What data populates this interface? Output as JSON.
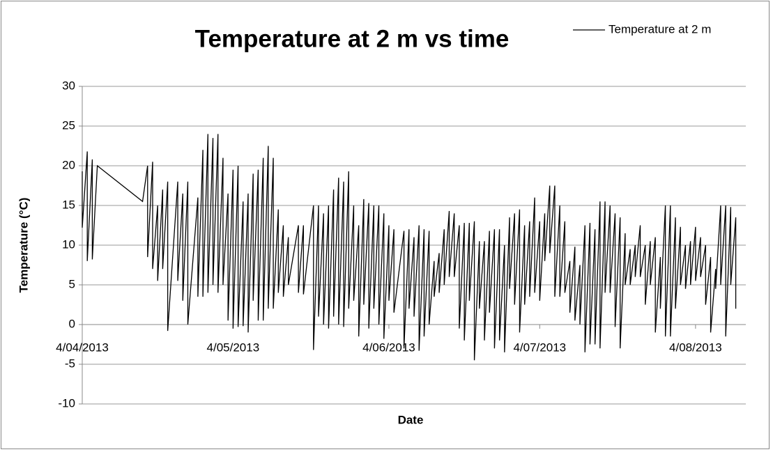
{
  "chart_data": {
    "type": "line",
    "title": "Temperature at 2 m vs time",
    "x_label": "Date",
    "y_label": "Temperature (°C)",
    "legend": "top-right",
    "grid": true,
    "xlim": [
      "2013-04-04",
      "2013-08-14"
    ],
    "xticks": [
      {
        "value": "2013-04-04",
        "label": "4/04/2013"
      },
      {
        "value": "2013-05-04",
        "label": "4/05/2013"
      },
      {
        "value": "2013-06-04",
        "label": "4/06/2013"
      },
      {
        "value": "2013-07-04",
        "label": "4/07/2013"
      },
      {
        "value": "2013-08-04",
        "label": "4/08/2013"
      }
    ],
    "ylim": [
      -10,
      30
    ],
    "yticks": [
      -10,
      -5,
      0,
      5,
      10,
      15,
      20,
      25,
      30
    ],
    "x": [
      "2013-04-04",
      "2013-04-04",
      "2013-04-05",
      "2013-04-05",
      "2013-04-06",
      "2013-04-06",
      "2013-04-07",
      "2013-04-16",
      "2013-04-17",
      "2013-04-17",
      "2013-04-18",
      "2013-04-18",
      "2013-04-19",
      "2013-04-19",
      "2013-04-20",
      "2013-04-20",
      "2013-04-21",
      "2013-04-21",
      "2013-04-23",
      "2013-04-23",
      "2013-04-24",
      "2013-04-24",
      "2013-04-25",
      "2013-04-25",
      "2013-04-27",
      "2013-04-27",
      "2013-04-28",
      "2013-04-28",
      "2013-04-29",
      "2013-04-29",
      "2013-04-30",
      "2013-04-30",
      "2013-05-01",
      "2013-05-01",
      "2013-05-02",
      "2013-05-02",
      "2013-05-03",
      "2013-05-03",
      "2013-05-04",
      "2013-05-04",
      "2013-05-05",
      "2013-05-05",
      "2013-05-06",
      "2013-05-06",
      "2013-05-07",
      "2013-05-07",
      "2013-05-08",
      "2013-05-08",
      "2013-05-09",
      "2013-05-09",
      "2013-05-10",
      "2013-05-10",
      "2013-05-11",
      "2013-05-11",
      "2013-05-12",
      "2013-05-12",
      "2013-05-13",
      "2013-05-13",
      "2013-05-14",
      "2013-05-14",
      "2013-05-15",
      "2013-05-15",
      "2013-05-17",
      "2013-05-17",
      "2013-05-18",
      "2013-05-18",
      "2013-05-20",
      "2013-05-20",
      "2013-05-21",
      "2013-05-21",
      "2013-05-22",
      "2013-05-22",
      "2013-05-23",
      "2013-05-23",
      "2013-05-24",
      "2013-05-24",
      "2013-05-25",
      "2013-05-25",
      "2013-05-26",
      "2013-05-26",
      "2013-05-27",
      "2013-05-27",
      "2013-05-28",
      "2013-05-28",
      "2013-05-29",
      "2013-05-29",
      "2013-05-30",
      "2013-05-30",
      "2013-05-31",
      "2013-05-31",
      "2013-06-01",
      "2013-06-01",
      "2013-06-02",
      "2013-06-02",
      "2013-06-03",
      "2013-06-03",
      "2013-06-04",
      "2013-06-04",
      "2013-06-05",
      "2013-06-05",
      "2013-06-07",
      "2013-06-07",
      "2013-06-08",
      "2013-06-08",
      "2013-06-09",
      "2013-06-09",
      "2013-06-10",
      "2013-06-10",
      "2013-06-11",
      "2013-06-11",
      "2013-06-12",
      "2013-06-12",
      "2013-06-13",
      "2013-06-13",
      "2013-06-14",
      "2013-06-14",
      "2013-06-15",
      "2013-06-15",
      "2013-06-16",
      "2013-06-16",
      "2013-06-17",
      "2013-06-17",
      "2013-06-18",
      "2013-06-18",
      "2013-06-19",
      "2013-06-19",
      "2013-06-20",
      "2013-06-20",
      "2013-06-21",
      "2013-06-21",
      "2013-06-22",
      "2013-06-22",
      "2013-06-23",
      "2013-06-23",
      "2013-06-24",
      "2013-06-24",
      "2013-06-25",
      "2013-06-25",
      "2013-06-26",
      "2013-06-26",
      "2013-06-27",
      "2013-06-27",
      "2013-06-28",
      "2013-06-28",
      "2013-06-29",
      "2013-06-29",
      "2013-06-30",
      "2013-06-30",
      "2013-07-01",
      "2013-07-01",
      "2013-07-02",
      "2013-07-02",
      "2013-07-03",
      "2013-07-03",
      "2013-07-04",
      "2013-07-04",
      "2013-07-05",
      "2013-07-05",
      "2013-07-06",
      "2013-07-06",
      "2013-07-07",
      "2013-07-07",
      "2013-07-08",
      "2013-07-08",
      "2013-07-09",
      "2013-07-09",
      "2013-07-10",
      "2013-07-10",
      "2013-07-11",
      "2013-07-11",
      "2013-07-12",
      "2013-07-12",
      "2013-07-13",
      "2013-07-13",
      "2013-07-14",
      "2013-07-14",
      "2013-07-15",
      "2013-07-15",
      "2013-07-16",
      "2013-07-16",
      "2013-07-17",
      "2013-07-17",
      "2013-07-18",
      "2013-07-18",
      "2013-07-19",
      "2013-07-19",
      "2013-07-20",
      "2013-07-20",
      "2013-07-21",
      "2013-07-21",
      "2013-07-22",
      "2013-07-22",
      "2013-07-23",
      "2013-07-23",
      "2013-07-24",
      "2013-07-24",
      "2013-07-25",
      "2013-07-25",
      "2013-07-26",
      "2013-07-26",
      "2013-07-27",
      "2013-07-27",
      "2013-07-28",
      "2013-07-28",
      "2013-07-29",
      "2013-07-29",
      "2013-07-30",
      "2013-07-30",
      "2013-07-31",
      "2013-07-31",
      "2013-08-01",
      "2013-08-01",
      "2013-08-02",
      "2013-08-02",
      "2013-08-03",
      "2013-08-03",
      "2013-08-04",
      "2013-08-04",
      "2013-08-05",
      "2013-08-05",
      "2013-08-06",
      "2013-08-06",
      "2013-08-07",
      "2013-08-07",
      "2013-08-08",
      "2013-08-08",
      "2013-08-09",
      "2013-08-09",
      "2013-08-10",
      "2013-08-10",
      "2013-08-11",
      "2013-08-11",
      "2013-08-12",
      "2013-08-12"
    ],
    "series": [
      {
        "name": "Temperature at 2 m",
        "color": "#000000",
        "values": [
          19.3,
          12.2,
          21.8,
          8,
          20.8,
          8.2,
          20,
          15.5,
          20,
          8.5,
          20.5,
          7,
          15,
          5.5,
          17,
          7,
          18,
          -0.8,
          18,
          5.5,
          16.5,
          3,
          18,
          0,
          16,
          3.5,
          22,
          3.5,
          24,
          4,
          23.5,
          5,
          24,
          4,
          21,
          5,
          16.5,
          0.5,
          19.5,
          -0.5,
          20,
          -0.3,
          15.5,
          -0.2,
          16.5,
          -1,
          19,
          3,
          19.5,
          0.5,
          21,
          0.5,
          22.5,
          2,
          21,
          2,
          14.5,
          4,
          12.5,
          3.5,
          11,
          5,
          12.5,
          4,
          12.5,
          3.8,
          15,
          -3.2,
          15,
          1,
          14,
          0,
          15,
          -0.5,
          17,
          1,
          18.5,
          0,
          18,
          -0.3,
          19.3,
          2,
          15,
          3,
          12.5,
          -1.5,
          15.8,
          2.5,
          15.3,
          -0.5,
          15,
          2,
          15,
          0,
          14,
          -1.8,
          12.5,
          3,
          12,
          1.5,
          11.8,
          -3,
          12,
          2,
          11,
          1,
          12.5,
          -3.3,
          12,
          -1.5,
          11.8,
          0,
          8,
          3.5,
          9,
          4,
          12,
          5,
          14.3,
          6,
          14,
          6,
          12.5,
          -0.5,
          12.8,
          -2,
          12.8,
          3,
          13,
          -4.5,
          10.5,
          2,
          10.5,
          -2,
          11.8,
          1.5,
          12,
          -3,
          12,
          -2,
          10,
          -3.5,
          13.5,
          4.5,
          14,
          2.5,
          14.5,
          -1,
          12.5,
          2.5,
          13,
          3.5,
          16,
          4,
          13,
          3,
          14,
          8,
          17.5,
          9,
          17.5,
          3.5,
          15,
          3.5,
          13,
          4,
          8,
          1.5,
          9.8,
          0.5,
          7.5,
          0,
          12.5,
          -3.5,
          12.8,
          -2.5,
          12,
          -2.5,
          15.5,
          -3,
          15.5,
          4,
          15,
          4,
          14,
          -0.3,
          13.5,
          -3,
          11.5,
          5,
          9.5,
          5,
          10,
          6,
          12.5,
          6,
          10,
          2.5,
          10.5,
          5,
          11,
          -1,
          8.5,
          2,
          15,
          -1.5,
          15,
          -1.5,
          13.5,
          2,
          12.3,
          5,
          10,
          4.5,
          10.5,
          5,
          12.3,
          5.5,
          11,
          6,
          10,
          2.5,
          8.5,
          -1,
          7,
          4.5,
          15,
          5,
          15,
          -1.5,
          14.8,
          5,
          13.5,
          2
        ]
      }
    ]
  }
}
